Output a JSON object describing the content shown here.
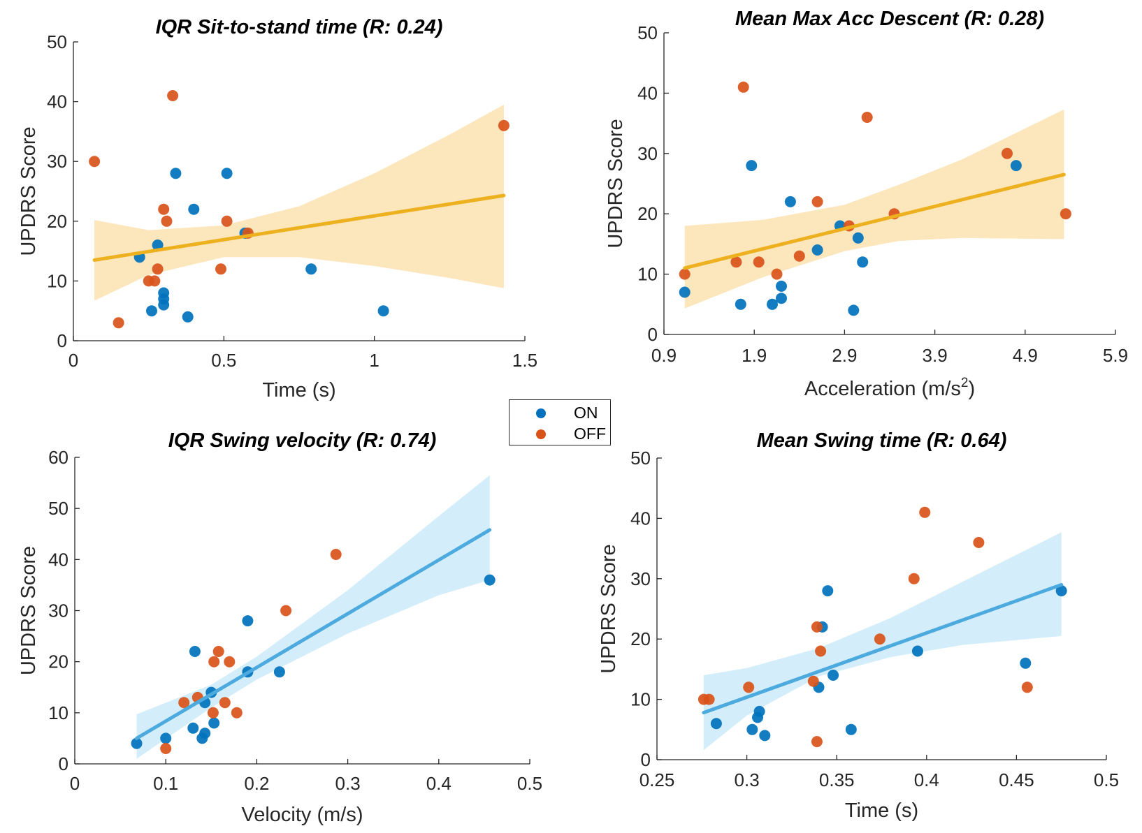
{
  "legend": {
    "items": [
      {
        "label": "ON",
        "color": "#0072BD"
      },
      {
        "label": "OFF",
        "color": "#D95319"
      }
    ]
  },
  "chart_data": [
    {
      "type": "scatter",
      "title": "IQR Sit-to-stand time (R: 0.24)",
      "xlabel": "Time (s)",
      "ylabel": "UPDRS Score",
      "xlim": [
        0,
        1.5
      ],
      "ylim": [
        0,
        50
      ],
      "xticks": [
        "0",
        "0.5",
        "1",
        "1.5"
      ],
      "yticks": [
        "0",
        "10",
        "20",
        "30",
        "40",
        "50"
      ],
      "fit": {
        "color": "#EDB120",
        "band_color": "#FBE2B0",
        "x": [
          0.07,
          1.43
        ],
        "y": [
          13.5,
          24.3
        ],
        "band_x": [
          0.07,
          0.25,
          0.5,
          0.75,
          1.0,
          1.25,
          1.43
        ],
        "band_lower": [
          6.7,
          11.0,
          14.0,
          14.0,
          12.5,
          10.5,
          8.8
        ],
        "band_upper": [
          20.2,
          18.5,
          19.3,
          22.5,
          28.0,
          34.5,
          39.5
        ]
      },
      "series": [
        {
          "name": "ON",
          "color": "#0072BD",
          "points": [
            [
              0.22,
              14
            ],
            [
              0.26,
              5
            ],
            [
              0.28,
              16
            ],
            [
              0.3,
              8
            ],
            [
              0.3,
              7
            ],
            [
              0.3,
              6
            ],
            [
              0.34,
              28
            ],
            [
              0.38,
              4
            ],
            [
              0.4,
              22
            ],
            [
              0.51,
              28
            ],
            [
              0.57,
              18
            ],
            [
              0.79,
              12
            ],
            [
              1.03,
              5
            ]
          ]
        },
        {
          "name": "OFF",
          "color": "#D95319",
          "points": [
            [
              0.07,
              30
            ],
            [
              0.15,
              3
            ],
            [
              0.25,
              10
            ],
            [
              0.27,
              10
            ],
            [
              0.28,
              12
            ],
            [
              0.3,
              22
            ],
            [
              0.31,
              20
            ],
            [
              0.33,
              41
            ],
            [
              0.49,
              12
            ],
            [
              0.51,
              20
            ],
            [
              0.58,
              18
            ],
            [
              1.43,
              36
            ]
          ]
        }
      ]
    },
    {
      "type": "scatter",
      "title": "Mean Max Acc Descent (R: 0.28)",
      "xlabel": "Acceleration (m/s",
      "xlabel_sup": "2",
      "xlabel_end": ")",
      "ylabel": "UPDRS Score",
      "xlim": [
        0.9,
        5.9
      ],
      "ylim": [
        0,
        50
      ],
      "xticks": [
        "0.9",
        "1.9",
        "2.9",
        "3.9",
        "4.9",
        "5.9"
      ],
      "yticks": [
        "0",
        "10",
        "20",
        "30",
        "40",
        "50"
      ],
      "fit": {
        "color": "#EDB120",
        "band_color": "#FBE2B0",
        "x": [
          1.13,
          5.33
        ],
        "y": [
          11.0,
          26.5
        ],
        "band_x": [
          1.13,
          2.0,
          2.9,
          3.5,
          4.2,
          5.33
        ],
        "band_lower": [
          4.3,
          9.5,
          13.8,
          15.5,
          16.0,
          15.8
        ],
        "band_upper": [
          18.0,
          19.0,
          21.5,
          24.8,
          29.0,
          37.3
        ]
      },
      "series": [
        {
          "name": "ON",
          "color": "#0072BD",
          "points": [
            [
              1.13,
              7
            ],
            [
              1.75,
              5
            ],
            [
              1.87,
              28
            ],
            [
              2.1,
              5
            ],
            [
              2.2,
              8
            ],
            [
              2.2,
              6
            ],
            [
              2.3,
              22
            ],
            [
              2.6,
              14
            ],
            [
              2.85,
              18
            ],
            [
              3.0,
              4
            ],
            [
              3.05,
              16
            ],
            [
              3.1,
              12
            ],
            [
              4.8,
              28
            ]
          ]
        },
        {
          "name": "OFF",
          "color": "#D95319",
          "points": [
            [
              1.13,
              10
            ],
            [
              1.7,
              12
            ],
            [
              1.78,
              41
            ],
            [
              1.95,
              12
            ],
            [
              2.15,
              10
            ],
            [
              2.4,
              13
            ],
            [
              2.6,
              22
            ],
            [
              2.95,
              18
            ],
            [
              3.15,
              36
            ],
            [
              3.45,
              20
            ],
            [
              4.7,
              30
            ],
            [
              5.35,
              20
            ]
          ]
        }
      ]
    },
    {
      "type": "scatter",
      "title": "IQR Swing velocity (R: 0.74)",
      "xlabel": "Velocity (m/s)",
      "ylabel": "UPDRS Score",
      "xlim": [
        0,
        0.5
      ],
      "ylim": [
        0,
        60
      ],
      "xticks": [
        "0",
        "0.1",
        "0.2",
        "0.3",
        "0.4",
        "0.5"
      ],
      "yticks": [
        "0",
        "10",
        "20",
        "30",
        "40",
        "50",
        "60"
      ],
      "fit": {
        "color": "#4DAADF",
        "band_color": "#CBEBF9",
        "x": [
          0.068,
          0.456
        ],
        "y": [
          5.0,
          45.8
        ],
        "band_x": [
          0.068,
          0.15,
          0.2,
          0.3,
          0.4,
          0.456
        ],
        "band_lower": [
          1.0,
          11.0,
          16.5,
          25.5,
          33.0,
          36.0
        ],
        "band_upper": [
          9.7,
          15.5,
          21.0,
          34.0,
          48.5,
          56.5
        ]
      },
      "series": [
        {
          "name": "ON",
          "color": "#0072BD",
          "points": [
            [
              0.068,
              4
            ],
            [
              0.1,
              5
            ],
            [
              0.13,
              7
            ],
            [
              0.132,
              22
            ],
            [
              0.14,
              5
            ],
            [
              0.143,
              6
            ],
            [
              0.143,
              12
            ],
            [
              0.15,
              14
            ],
            [
              0.153,
              8
            ],
            [
              0.19,
              28
            ],
            [
              0.19,
              18
            ],
            [
              0.225,
              18
            ],
            [
              0.456,
              36
            ]
          ]
        },
        {
          "name": "OFF",
          "color": "#D95319",
          "points": [
            [
              0.1,
              3
            ],
            [
              0.12,
              12
            ],
            [
              0.135,
              13
            ],
            [
              0.152,
              10
            ],
            [
              0.153,
              20
            ],
            [
              0.158,
              22
            ],
            [
              0.165,
              12
            ],
            [
              0.17,
              20
            ],
            [
              0.178,
              10
            ],
            [
              0.232,
              30
            ],
            [
              0.287,
              41
            ]
          ]
        }
      ]
    },
    {
      "type": "scatter",
      "title": "Mean Swing time (R: 0.64)",
      "xlabel": "Time (s)",
      "ylabel": "UPDRS Score",
      "xlim": [
        0.25,
        0.5
      ],
      "ylim": [
        0,
        50
      ],
      "xticks": [
        "0.25",
        "0.3",
        "0.35",
        "0.4",
        "0.45",
        "0.5"
      ],
      "yticks": [
        "0",
        "10",
        "20",
        "30",
        "40",
        "50"
      ],
      "fit": {
        "color": "#4DAADF",
        "band_color": "#CBEBF9",
        "x": [
          0.276,
          0.475
        ],
        "y": [
          7.8,
          29.0
        ],
        "band_x": [
          0.276,
          0.3,
          0.34,
          0.38,
          0.42,
          0.475
        ],
        "band_lower": [
          1.6,
          7.3,
          13.8,
          17.0,
          19.0,
          20.5
        ],
        "band_upper": [
          14.0,
          15.2,
          18.5,
          23.5,
          29.5,
          37.7
        ]
      },
      "series": [
        {
          "name": "ON",
          "color": "#0072BD",
          "points": [
            [
              0.283,
              6
            ],
            [
              0.303,
              5
            ],
            [
              0.306,
              7
            ],
            [
              0.307,
              8
            ],
            [
              0.31,
              4
            ],
            [
              0.34,
              12
            ],
            [
              0.342,
              22
            ],
            [
              0.345,
              28
            ],
            [
              0.348,
              14
            ],
            [
              0.358,
              5
            ],
            [
              0.395,
              18
            ],
            [
              0.455,
              16
            ],
            [
              0.475,
              28
            ]
          ]
        },
        {
          "name": "OFF",
          "color": "#D95319",
          "points": [
            [
              0.276,
              10
            ],
            [
              0.279,
              10
            ],
            [
              0.301,
              12
            ],
            [
              0.337,
              13
            ],
            [
              0.339,
              3
            ],
            [
              0.339,
              22
            ],
            [
              0.341,
              18
            ],
            [
              0.374,
              20
            ],
            [
              0.393,
              30
            ],
            [
              0.399,
              41
            ],
            [
              0.429,
              36
            ],
            [
              0.456,
              12
            ]
          ]
        }
      ]
    }
  ]
}
